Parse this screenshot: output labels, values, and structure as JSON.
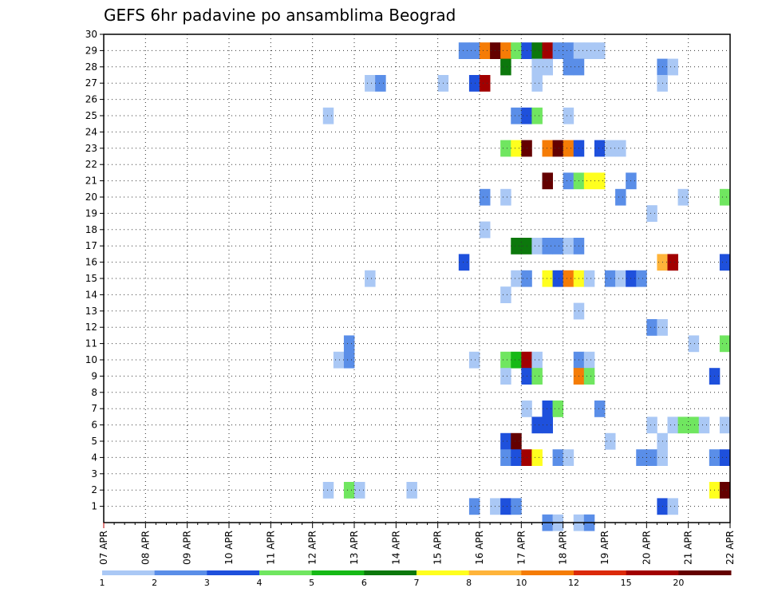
{
  "chart_data": {
    "type": "heatmap",
    "title": "GEFS 6hr padavine po ansamblima Beograd",
    "x_labels": [
      "07 APR",
      "08 APR",
      "09 APR",
      "10 APR",
      "11 APR",
      "12 APR",
      "13 APR",
      "14 APR",
      "15 APR",
      "16 APR",
      "17 APR",
      "18 APR",
      "19 APR",
      "20 APR",
      "21 APR",
      "22 APR"
    ],
    "y_labels": [
      "1",
      "2",
      "3",
      "4",
      "5",
      "6",
      "7",
      "8",
      "9",
      "10",
      "11",
      "12",
      "13",
      "14",
      "15",
      "16",
      "17",
      "18",
      "19",
      "20",
      "21",
      "22",
      "23",
      "24",
      "25",
      "26",
      "27",
      "28",
      "29",
      "30"
    ],
    "steps_per_day": 4,
    "y_range": [
      0,
      30
    ],
    "grid": true,
    "grid_style": "dotted",
    "legend_placement": "bottom",
    "legend": {
      "labels": [
        "1",
        "2",
        "3",
        "4",
        "5",
        "6",
        "7",
        "8",
        "10",
        "12",
        "15",
        "20"
      ],
      "colors": [
        "#aac8f5",
        "#5a8ee8",
        "#1e50dc",
        "#70e660",
        "#16b916",
        "#0c780c",
        "#ffff1e",
        "#ffb43a",
        "#f57c06",
        "#dc2a0a",
        "#a20000",
        "#640000"
      ]
    },
    "cells": [
      [
        34,
        29,
        2
      ],
      [
        35,
        29,
        2
      ],
      [
        36,
        29,
        10
      ],
      [
        37,
        29,
        20
      ],
      [
        38,
        29,
        10
      ],
      [
        39,
        29,
        4
      ],
      [
        40,
        29,
        3
      ],
      [
        41,
        29,
        6
      ],
      [
        42,
        29,
        15
      ],
      [
        43,
        29,
        2
      ],
      [
        44,
        29,
        2
      ],
      [
        45,
        29,
        1
      ],
      [
        46,
        29,
        1
      ],
      [
        47,
        29,
        1
      ],
      [
        38,
        28,
        6
      ],
      [
        41,
        28,
        1
      ],
      [
        42,
        28,
        1
      ],
      [
        44,
        28,
        2
      ],
      [
        45,
        28,
        2
      ],
      [
        53,
        28,
        2
      ],
      [
        54,
        28,
        1
      ],
      [
        25,
        27,
        1
      ],
      [
        26,
        27,
        2
      ],
      [
        32,
        27,
        1
      ],
      [
        35,
        27,
        3
      ],
      [
        36,
        27,
        15
      ],
      [
        41,
        27,
        1
      ],
      [
        53,
        27,
        1
      ],
      [
        21,
        25,
        1
      ],
      [
        39,
        25,
        2
      ],
      [
        40,
        25,
        3
      ],
      [
        41,
        25,
        4
      ],
      [
        44,
        25,
        1
      ],
      [
        38,
        23,
        4
      ],
      [
        39,
        23,
        7
      ],
      [
        40,
        23,
        20
      ],
      [
        42,
        23,
        10
      ],
      [
        43,
        23,
        20
      ],
      [
        44,
        23,
        10
      ],
      [
        45,
        23,
        3
      ],
      [
        47,
        23,
        3
      ],
      [
        48,
        23,
        1
      ],
      [
        49,
        23,
        1
      ],
      [
        42,
        21,
        20
      ],
      [
        44,
        21,
        2
      ],
      [
        45,
        21,
        4
      ],
      [
        46,
        21,
        7
      ],
      [
        47,
        21,
        7
      ],
      [
        50,
        21,
        2
      ],
      [
        36,
        20,
        2
      ],
      [
        38,
        20,
        1
      ],
      [
        49,
        20,
        2
      ],
      [
        55,
        20,
        1
      ],
      [
        59,
        20,
        4
      ],
      [
        52,
        19,
        1
      ],
      [
        36,
        18,
        1
      ],
      [
        39,
        17,
        6
      ],
      [
        40,
        17,
        6
      ],
      [
        41,
        17,
        1
      ],
      [
        42,
        17,
        2
      ],
      [
        43,
        17,
        2
      ],
      [
        44,
        17,
        1
      ],
      [
        45,
        17,
        2
      ],
      [
        34,
        16,
        3
      ],
      [
        53,
        16,
        8
      ],
      [
        54,
        16,
        15
      ],
      [
        59,
        16,
        3
      ],
      [
        25,
        15,
        1
      ],
      [
        39,
        15,
        1
      ],
      [
        40,
        15,
        2
      ],
      [
        42,
        15,
        7
      ],
      [
        43,
        15,
        3
      ],
      [
        44,
        15,
        10
      ],
      [
        45,
        15,
        7
      ],
      [
        46,
        15,
        1
      ],
      [
        48,
        15,
        2
      ],
      [
        49,
        15,
        1
      ],
      [
        50,
        15,
        3
      ],
      [
        51,
        15,
        2
      ],
      [
        38,
        14,
        1
      ],
      [
        45,
        13,
        1
      ],
      [
        52,
        12,
        2
      ],
      [
        53,
        12,
        1
      ],
      [
        23,
        11,
        2
      ],
      [
        56,
        11,
        1
      ],
      [
        59,
        11,
        4
      ],
      [
        22,
        10,
        1
      ],
      [
        23,
        10,
        2
      ],
      [
        35,
        10,
        1
      ],
      [
        38,
        10,
        4
      ],
      [
        39,
        10,
        5
      ],
      [
        40,
        10,
        15
      ],
      [
        41,
        10,
        1
      ],
      [
        45,
        10,
        2
      ],
      [
        46,
        10,
        1
      ],
      [
        38,
        9,
        1
      ],
      [
        40,
        9,
        3
      ],
      [
        41,
        9,
        4
      ],
      [
        45,
        9,
        10
      ],
      [
        46,
        9,
        4
      ],
      [
        58,
        9,
        3
      ],
      [
        40,
        7,
        1
      ],
      [
        42,
        7,
        3
      ],
      [
        43,
        7,
        4
      ],
      [
        47,
        7,
        2
      ],
      [
        41,
        6,
        3
      ],
      [
        42,
        6,
        3
      ],
      [
        52,
        6,
        1
      ],
      [
        54,
        6,
        1
      ],
      [
        55,
        6,
        4
      ],
      [
        56,
        6,
        4
      ],
      [
        57,
        6,
        1
      ],
      [
        59,
        6,
        1
      ],
      [
        38,
        5,
        3
      ],
      [
        39,
        5,
        20
      ],
      [
        48,
        5,
        1
      ],
      [
        53,
        5,
        1
      ],
      [
        38,
        4,
        2
      ],
      [
        39,
        4,
        3
      ],
      [
        40,
        4,
        15
      ],
      [
        41,
        4,
        7
      ],
      [
        43,
        4,
        2
      ],
      [
        44,
        4,
        1
      ],
      [
        51,
        4,
        2
      ],
      [
        52,
        4,
        2
      ],
      [
        53,
        4,
        1
      ],
      [
        58,
        4,
        2
      ],
      [
        59,
        4,
        3
      ],
      [
        21,
        2,
        1
      ],
      [
        23,
        2,
        4
      ],
      [
        24,
        2,
        1
      ],
      [
        29,
        2,
        1
      ],
      [
        58,
        2,
        7
      ],
      [
        59,
        2,
        20
      ],
      [
        35,
        1,
        2
      ],
      [
        37,
        1,
        1
      ],
      [
        38,
        1,
        3
      ],
      [
        39,
        1,
        2
      ],
      [
        53,
        1,
        3
      ],
      [
        54,
        1,
        1
      ],
      [
        42,
        0,
        2
      ],
      [
        43,
        0,
        1
      ],
      [
        45,
        0,
        1
      ],
      [
        46,
        0,
        2
      ]
    ]
  }
}
